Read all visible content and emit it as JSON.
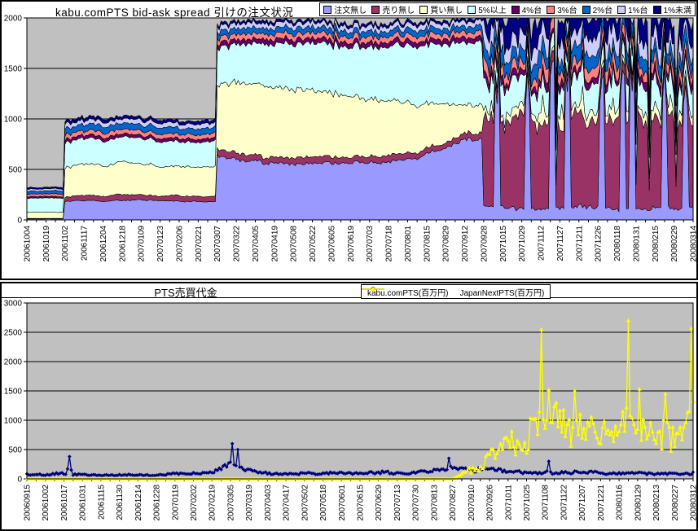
{
  "page": {
    "background": "#FFFFFF",
    "plot_background": "#C0C0C0",
    "gridline_color": "#000000"
  },
  "chart_data": [
    {
      "type": "area",
      "stacked": true,
      "title": "kabu.comPTS bid-ask spread 引けの注文状況",
      "legend_position": "top-right",
      "grid": "horizontal",
      "ylim": [
        0,
        2000
      ],
      "yticks": [
        "0",
        "500",
        "1000",
        "1500",
        "2000"
      ],
      "categories": [
        "20061004",
        "20061019",
        "20061102",
        "20061117",
        "20061204",
        "20061218",
        "20070109",
        "20070123",
        "20070206",
        "20070221",
        "20070307",
        "20070322",
        "20070405",
        "20070419",
        "20070508",
        "20070522",
        "20070605",
        "20070619",
        "20070703",
        "20070718",
        "20070801",
        "20070815",
        "20070829",
        "20070912",
        "20070928",
        "20071015",
        "20071029",
        "20071112",
        "20071127",
        "20071211",
        "20071226",
        "20080118",
        "20080131",
        "20080215",
        "20080229",
        "20080314"
      ],
      "series": [
        {
          "name": "注文無し",
          "color": "#9999FF",
          "values": [
            10,
            10,
            180,
            190,
            185,
            195,
            200,
            190,
            185,
            180,
            630,
            600,
            580,
            560,
            550,
            560,
            570,
            560,
            570,
            580,
            600,
            650,
            720,
            800,
            150,
            130,
            120,
            110,
            120,
            130,
            120,
            110,
            120,
            130,
            120,
            130
          ]
        },
        {
          "name": "売り無し",
          "color": "#993366",
          "values": [
            5,
            5,
            45,
            55,
            50,
            60,
            50,
            45,
            55,
            50,
            70,
            65,
            60,
            55,
            60,
            65,
            60,
            55,
            60,
            65,
            60,
            55,
            50,
            60,
            900,
            850,
            880,
            820,
            860,
            900,
            870,
            830,
            860,
            880,
            850,
            870
          ]
        },
        {
          "name": "買い無し",
          "color": "#FFFFCC",
          "values": [
            60,
            60,
            290,
            310,
            300,
            320,
            310,
            300,
            290,
            300,
            640,
            700,
            720,
            700,
            680,
            650,
            620,
            600,
            570,
            540,
            500,
            450,
            380,
            280,
            100,
            90,
            80,
            90,
            100,
            85,
            90,
            95,
            85,
            90,
            95,
            90
          ]
        },
        {
          "name": "5%以上",
          "color": "#CCFFFF",
          "values": [
            140,
            140,
            240,
            260,
            250,
            245,
            255,
            250,
            245,
            250,
            370,
            380,
            400,
            420,
            450,
            470,
            480,
            500,
            520,
            540,
            560,
            580,
            600,
            620,
            280,
            260,
            270,
            250,
            260,
            270,
            260,
            250,
            260,
            270,
            260,
            270
          ]
        },
        {
          "name": "4%台",
          "color": "#660066",
          "values": [
            15,
            15,
            30,
            30,
            32,
            30,
            28,
            30,
            32,
            30,
            45,
            45,
            44,
            46,
            45,
            44,
            46,
            45,
            44,
            46,
            45,
            44,
            46,
            45,
            60,
            65,
            60,
            70,
            65,
            60,
            70,
            65,
            60,
            70,
            65,
            60
          ]
        },
        {
          "name": "3%台",
          "color": "#FF8080",
          "values": [
            25,
            25,
            45,
            45,
            46,
            44,
            45,
            46,
            44,
            45,
            55,
            55,
            56,
            54,
            55,
            56,
            54,
            55,
            56,
            54,
            55,
            56,
            54,
            55,
            100,
            110,
            95,
            105,
            100,
            110,
            95,
            105,
            100,
            110,
            95,
            105
          ]
        },
        {
          "name": "2%台",
          "color": "#0066CC",
          "values": [
            30,
            30,
            60,
            60,
            62,
            58,
            60,
            62,
            58,
            60,
            55,
            55,
            56,
            54,
            55,
            56,
            54,
            55,
            56,
            54,
            55,
            56,
            54,
            55,
            130,
            140,
            125,
            135,
            130,
            140,
            125,
            135,
            130,
            140,
            125,
            135
          ]
        },
        {
          "name": "1%台",
          "color": "#CCCCFF",
          "values": [
            20,
            20,
            45,
            45,
            46,
            44,
            45,
            46,
            44,
            45,
            50,
            50,
            51,
            49,
            50,
            51,
            49,
            50,
            51,
            49,
            50,
            51,
            49,
            50,
            150,
            160,
            145,
            155,
            150,
            160,
            145,
            155,
            150,
            160,
            145,
            155
          ]
        },
        {
          "name": "1%未満",
          "color": "#000080",
          "values": [
            15,
            15,
            30,
            30,
            31,
            29,
            30,
            31,
            29,
            30,
            25,
            25,
            26,
            24,
            25,
            26,
            24,
            25,
            26,
            24,
            25,
            26,
            24,
            25,
            230,
            250,
            220,
            240,
            230,
            250,
            220,
            240,
            230,
            250,
            220,
            240
          ]
        }
      ],
      "render_hints": {
        "points_per_interval": 10,
        "step_at_category_index": [
          2,
          10,
          24
        ],
        "noisy_phase_start_index": 24,
        "noise_amp_default": [
          0.05,
          0.15,
          0.06,
          0.06,
          0.16,
          0.16,
          0.16,
          0.16,
          0.18
        ],
        "noise_amp_noisy_phase": [
          0.3,
          0.14,
          0.5,
          0.35,
          0.5,
          0.5,
          0.5,
          0.55,
          0.55
        ],
        "order_none_spike_positions": [
          24.7,
          26.3,
          27.6,
          28.4,
          30.2,
          31.3,
          31.8,
          33.5,
          34.6,
          35.3
        ]
      }
    },
    {
      "type": "line",
      "title": "PTS売買代金",
      "legend_position": "top-center",
      "grid": "horizontal",
      "ylim": [
        0,
        3000
      ],
      "yticks": [
        "0",
        "500",
        "1000",
        "1500",
        "2000",
        "2500",
        "3000"
      ],
      "categories": [
        "20060915",
        "20061002",
        "20061017",
        "20061031",
        "20061115",
        "20061130",
        "20061214",
        "20061228",
        "20070119",
        "20070202",
        "20070219",
        "20070305",
        "20070319",
        "20070403",
        "20070417",
        "20070502",
        "20070518",
        "20070601",
        "20070615",
        "20070629",
        "20070713",
        "20070730",
        "20070813",
        "20070827",
        "20070910",
        "20070926",
        "20071011",
        "20071025",
        "20071108",
        "20071122",
        "20071207",
        "20071221",
        "20080116",
        "20080129",
        "20080213",
        "20080227",
        "20080312"
      ],
      "series": [
        {
          "name": "kabu.comPTS(百万円)",
          "color": "#000080",
          "marker": "diamond",
          "values": [
            80,
            70,
            90,
            75,
            60,
            70,
            65,
            70,
            85,
            90,
            110,
            260,
            130,
            100,
            85,
            90,
            100,
            95,
            85,
            115,
            95,
            100,
            145,
            190,
            150,
            170,
            120,
            105,
            95,
            110,
            120,
            105,
            95,
            110,
            85,
            90,
            100
          ],
          "peaks": [
            {
              "pos": 2.3,
              "value": 380
            },
            {
              "pos": 11.1,
              "value": 600
            },
            {
              "pos": 11.4,
              "value": 500
            },
            {
              "pos": 22.8,
              "value": 350
            },
            {
              "pos": 28.2,
              "value": 300
            }
          ]
        },
        {
          "name": "JapanNextPTS(百万円)",
          "color": "#FFFF00",
          "marker": "triangle",
          "values": [
            0,
            0,
            0,
            0,
            0,
            0,
            0,
            0,
            0,
            0,
            0,
            0,
            0,
            0,
            0,
            0,
            0,
            0,
            0,
            0,
            0,
            0,
            0,
            0,
            150,
            350,
            550,
            700,
            950,
            900,
            850,
            750,
            900,
            850,
            750,
            800,
            950
          ],
          "peaks": [
            {
              "pos": 27.8,
              "value": 2550
            },
            {
              "pos": 28.2,
              "value": 1520
            },
            {
              "pos": 29.6,
              "value": 1500
            },
            {
              "pos": 32.5,
              "value": 2700
            },
            {
              "pos": 33.1,
              "value": 1530
            },
            {
              "pos": 34.5,
              "value": 1450
            },
            {
              "pos": 35.9,
              "value": 2570
            }
          ]
        }
      ],
      "render_hints": {
        "points_per_interval": 10,
        "noise_amp": [
          0.28,
          0.45
        ]
      }
    }
  ]
}
